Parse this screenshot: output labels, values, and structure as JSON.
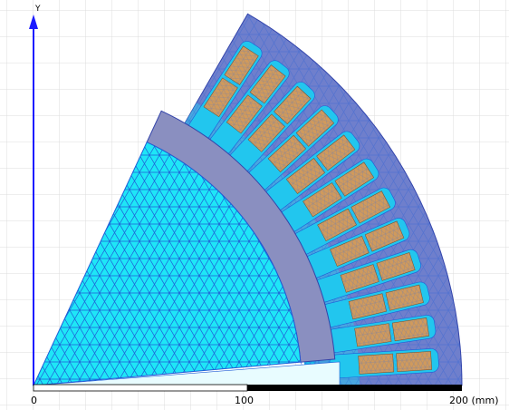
{
  "axis": {
    "label": "Y"
  },
  "scale_bar": {
    "labels": [
      "0",
      "100",
      "200 (mm)"
    ]
  }
}
